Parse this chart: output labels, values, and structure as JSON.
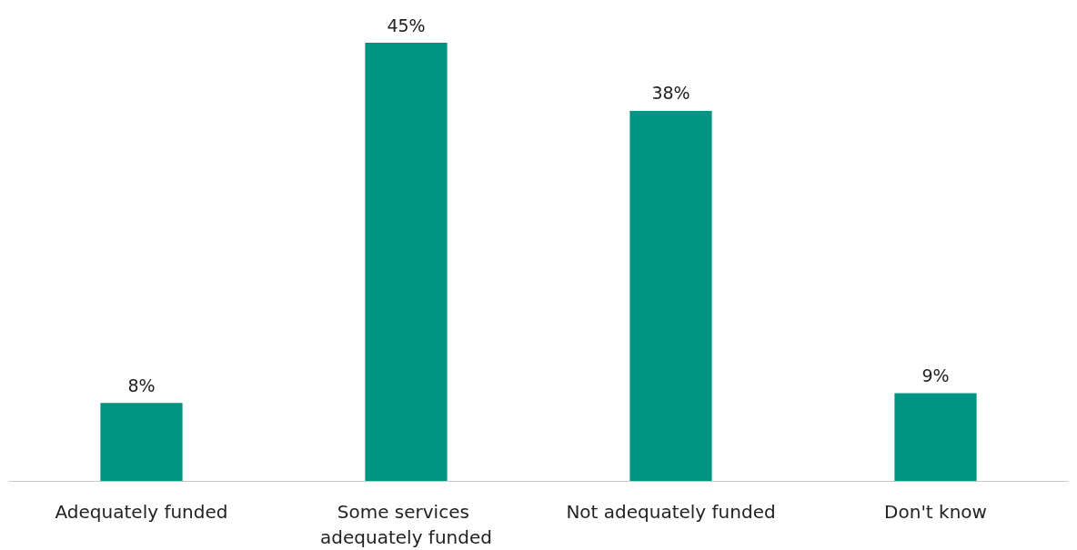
{
  "chart_data": {
    "type": "bar",
    "categories": [
      "Adequately funded",
      "Some services adequately funded",
      "Not adequately funded",
      "Don't know"
    ],
    "values": [
      8,
      45,
      38,
      9
    ],
    "value_labels": [
      "8%",
      "45%",
      "38%",
      "9%"
    ],
    "color": "#009482"
  }
}
